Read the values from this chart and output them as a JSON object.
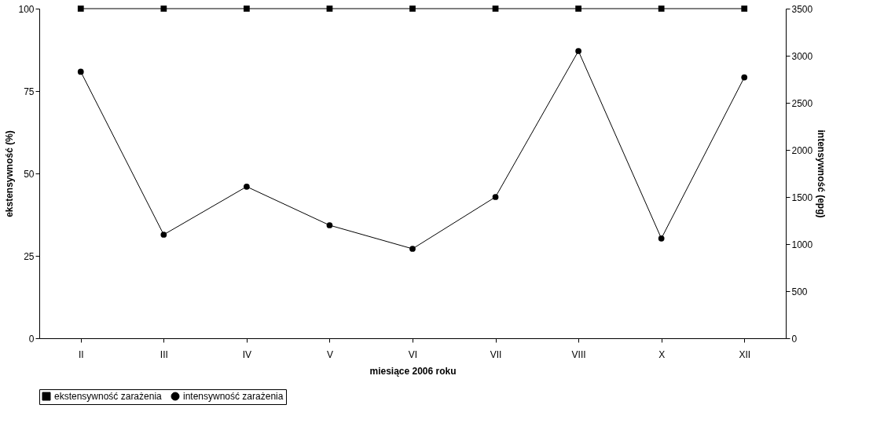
{
  "chart_data": {
    "type": "line",
    "xlabel": "miesiące 2006 roku",
    "ylabel": "ekstensywność (%)",
    "y2label": "intensywność (epg)",
    "categories": [
      "II",
      "III",
      "IV",
      "V",
      "VI",
      "VII",
      "VIII",
      "X",
      "XII"
    ],
    "series": [
      {
        "name": "ekstensywność zarażenia",
        "color": "#000000",
        "marker": "square",
        "values": [
          100,
          100,
          100,
          100,
          100,
          100,
          100,
          100,
          100
        ]
      },
      {
        "name": "intensywność zarażenia",
        "color": "#000000",
        "marker": "circle",
        "axis": "y2",
        "values": [
          2830,
          1100,
          1610,
          1200,
          950,
          1500,
          3050,
          1060,
          2770
        ]
      }
    ],
    "ylim": [
      0,
      100
    ],
    "yticks": [
      0,
      25,
      50,
      75,
      100
    ],
    "y2lim": [
      0,
      3500
    ],
    "y2ticks": [
      0,
      500,
      1000,
      1500,
      2000,
      2500,
      3000,
      3500
    ],
    "grid": false,
    "legend": "bottom",
    "line_style": "solid"
  }
}
